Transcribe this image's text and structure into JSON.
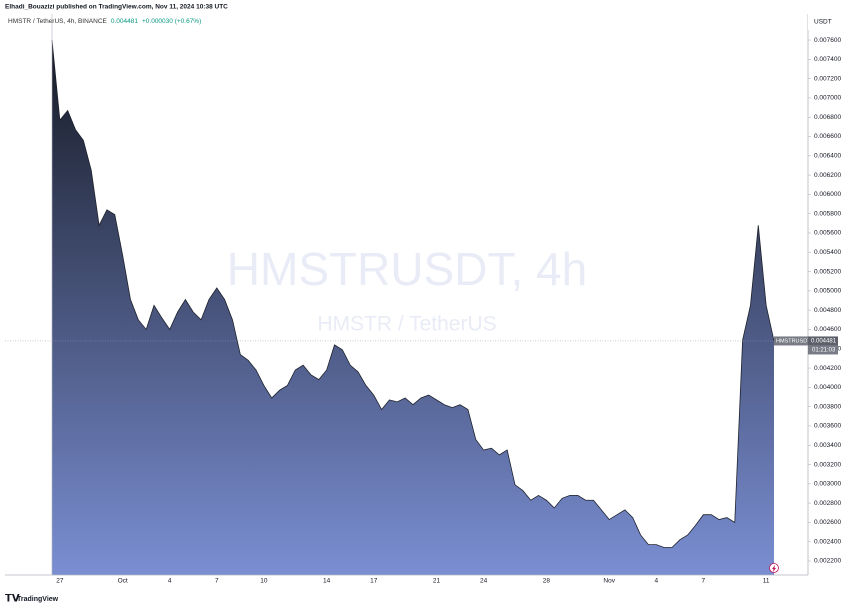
{
  "header": {
    "publisher": "Elhadi_Bouazizi published on TradingView.com, Nov 11, 2024 10:38 UTC",
    "symbol_line": "HMSTR / TetherUS, 4h, BINANCE",
    "change": "+0.000030 (+0.67%)"
  },
  "footer": "TradingView",
  "chart_data": {
    "type": "area",
    "watermark": "HMSTRUSDT, 4h",
    "watermark_subtitle": "HMSTR / TetherUS",
    "symbol": "HMSTRUSDT",
    "countdown": "01:21:03",
    "unit": "USDT",
    "gradient": [
      "#161a25",
      "#7a8ed2"
    ],
    "line_color": "#1e222d",
    "grid": false,
    "price_line": true,
    "categories": [
      null,
      "27",
      null,
      null,
      null,
      null,
      null,
      null,
      null,
      "Oct",
      null,
      null,
      null,
      null,
      null,
      "4",
      null,
      null,
      null,
      null,
      null,
      "7",
      null,
      null,
      null,
      null,
      null,
      "10",
      null,
      null,
      null,
      null,
      null,
      null,
      null,
      "14",
      null,
      null,
      null,
      null,
      null,
      "17",
      null,
      null,
      null,
      null,
      null,
      null,
      null,
      "21",
      null,
      null,
      null,
      null,
      null,
      "24",
      null,
      null,
      null,
      null,
      null,
      null,
      null,
      "28",
      null,
      null,
      null,
      null,
      null,
      null,
      null,
      "Nov",
      null,
      null,
      null,
      null,
      null,
      "4",
      null,
      null,
      null,
      null,
      null,
      "7",
      null,
      null,
      null,
      null,
      null,
      null,
      null,
      "11",
      null
    ],
    "values": [
      0.0076,
      0.00677,
      0.00687,
      0.00667,
      0.00656,
      0.00625,
      0.00568,
      0.00584,
      0.00579,
      0.00537,
      0.00491,
      0.0047,
      0.0046,
      0.00485,
      0.00472,
      0.0046,
      0.00478,
      0.00491,
      0.00478,
      0.0047,
      0.00491,
      0.00503,
      0.00491,
      0.0047,
      0.00434,
      0.00428,
      0.00418,
      0.00402,
      0.00389,
      0.00397,
      0.00402,
      0.00418,
      0.00423,
      0.00413,
      0.00408,
      0.00418,
      0.00444,
      0.00439,
      0.00423,
      0.00416,
      0.00402,
      0.00392,
      0.00377,
      0.00387,
      0.00385,
      0.00389,
      0.00382,
      0.00389,
      0.00392,
      0.00387,
      0.00382,
      0.00379,
      0.00382,
      0.00377,
      0.00346,
      0.00335,
      0.00337,
      0.0033,
      0.00335,
      0.00299,
      0.00293,
      0.00283,
      0.00288,
      0.00283,
      0.00275,
      0.00285,
      0.00288,
      0.00288,
      0.00283,
      0.00283,
      0.00273,
      0.00263,
      0.00268,
      0.00273,
      0.00265,
      0.00247,
      0.00237,
      0.00237,
      0.00234,
      0.00234,
      0.00242,
      0.00247,
      0.00257,
      0.00268,
      0.00268,
      0.00263,
      0.00265,
      0.0026,
      0.00449,
      0.00485,
      0.00568,
      0.00485,
      0.004481
    ],
    "ylim": [
      0.002055,
      0.00787
    ],
    "yticks": [
      {
        "value": 0.0022,
        "label": "0.002200"
      },
      {
        "value": 0.0024,
        "label": "0.002400"
      },
      {
        "value": 0.0026,
        "label": "0.002600"
      },
      {
        "value": 0.0028,
        "label": "0.002800"
      },
      {
        "value": 0.003,
        "label": "0.003000"
      },
      {
        "value": 0.0032,
        "label": "0.003200"
      },
      {
        "value": 0.0034,
        "label": "0.003400"
      },
      {
        "value": 0.0036,
        "label": "0.003600"
      },
      {
        "value": 0.0038,
        "label": "0.003800"
      },
      {
        "value": 0.004,
        "label": "0.004000"
      },
      {
        "value": 0.0042,
        "label": "0.004200"
      },
      {
        "value": 0.0044,
        "label": "0.004400"
      },
      {
        "value": 0.0046,
        "label": "0.004600"
      },
      {
        "value": 0.0048,
        "label": "0.004800"
      },
      {
        "value": 0.005,
        "label": "0.005000"
      },
      {
        "value": 0.0052,
        "label": "0.005200"
      },
      {
        "value": 0.0054,
        "label": "0.005400"
      },
      {
        "value": 0.0056,
        "label": "0.005600"
      },
      {
        "value": 0.0058,
        "label": "0.005800"
      },
      {
        "value": 0.006,
        "label": "0.006000"
      },
      {
        "value": 0.0062,
        "label": "0.006200"
      },
      {
        "value": 0.0064,
        "label": "0.006400"
      },
      {
        "value": 0.0066,
        "label": "0.006600"
      },
      {
        "value": 0.0068,
        "label": "0.006800"
      },
      {
        "value": 0.007,
        "label": "0.007000"
      },
      {
        "value": 0.0072,
        "label": "0.007200"
      },
      {
        "value": 0.0074,
        "label": "0.007400"
      },
      {
        "value": 0.0076,
        "label": "0.007600"
      }
    ]
  }
}
